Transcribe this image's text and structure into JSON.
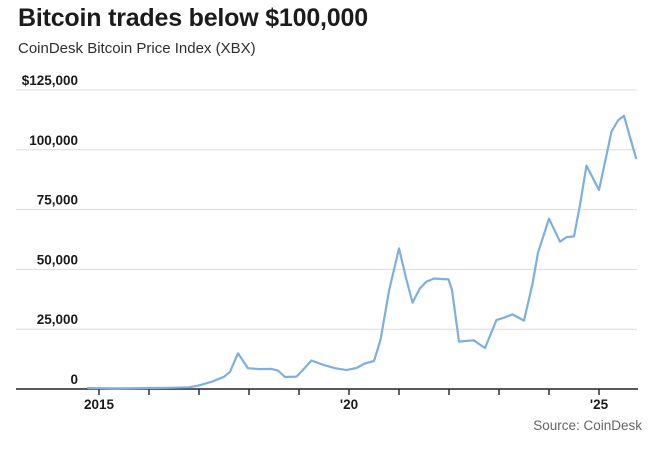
{
  "header": {
    "title": "Bitcoin trades below $100,000",
    "subtitle": "CoinDesk Bitcoin Price Index (XBX)"
  },
  "footer": {
    "source": "Source: CoinDesk"
  },
  "colors": {
    "line": "#7dafe1",
    "grid": "#dcdcdc",
    "axis": "#222222",
    "tick_label": "#1a1a1a",
    "title": "#1b1b1b",
    "source": "#666666",
    "background": "#ffffff"
  },
  "chart_data": {
    "type": "line",
    "title": "Bitcoin trades below $100,000",
    "subtitle": "CoinDesk Bitcoin Price Index (XBX)",
    "source": "Source: CoinDesk",
    "xlabel": "",
    "ylabel": "",
    "xlim": [
      2014.7,
      2025.8
    ],
    "ylim": [
      0,
      125000
    ],
    "grid": "horizontal",
    "legend": "none",
    "y_ticks": [
      {
        "value": 125000,
        "label": "$125,000"
      },
      {
        "value": 100000,
        "label": "100,000"
      },
      {
        "value": 75000,
        "label": "75,000"
      },
      {
        "value": 50000,
        "label": "50,000"
      },
      {
        "value": 25000,
        "label": "25,000"
      },
      {
        "value": 0,
        "label": "0"
      }
    ],
    "x_ticks": [
      {
        "value": 2015,
        "label": "2015"
      },
      {
        "value": 2016,
        "label": ""
      },
      {
        "value": 2017,
        "label": ""
      },
      {
        "value": 2018,
        "label": ""
      },
      {
        "value": 2019,
        "label": ""
      },
      {
        "value": 2020,
        "label": "'20"
      },
      {
        "value": 2021,
        "label": ""
      },
      {
        "value": 2022,
        "label": ""
      },
      {
        "value": 2023,
        "label": ""
      },
      {
        "value": 2024,
        "label": ""
      },
      {
        "value": 2025,
        "label": "'25"
      }
    ],
    "series": [
      {
        "name": "CoinDesk Bitcoin Price Index (XBX)",
        "color": "#7dafe1",
        "points": [
          [
            2014.78,
            400
          ],
          [
            2015.0,
            320
          ],
          [
            2015.3,
            270
          ],
          [
            2015.6,
            300
          ],
          [
            2016.0,
            430
          ],
          [
            2016.4,
            520
          ],
          [
            2016.8,
            700
          ],
          [
            2017.0,
            1500
          ],
          [
            2017.25,
            3000
          ],
          [
            2017.5,
            5100
          ],
          [
            2017.62,
            7200
          ],
          [
            2017.78,
            14900
          ],
          [
            2017.98,
            8700
          ],
          [
            2018.2,
            8300
          ],
          [
            2018.45,
            8400
          ],
          [
            2018.58,
            7700
          ],
          [
            2018.72,
            5000
          ],
          [
            2018.95,
            5200
          ],
          [
            2019.1,
            8500
          ],
          [
            2019.25,
            11900
          ],
          [
            2019.5,
            10000
          ],
          [
            2019.72,
            8700
          ],
          [
            2019.95,
            7900
          ],
          [
            2020.15,
            8800
          ],
          [
            2020.32,
            10700
          ],
          [
            2020.5,
            11700
          ],
          [
            2020.63,
            20500
          ],
          [
            2020.8,
            41000
          ],
          [
            2021.0,
            58800
          ],
          [
            2021.15,
            45600
          ],
          [
            2021.27,
            36100
          ],
          [
            2021.42,
            42100
          ],
          [
            2021.55,
            44900
          ],
          [
            2021.7,
            46200
          ],
          [
            2021.85,
            46000
          ],
          [
            2021.99,
            45800
          ],
          [
            2022.06,
            41400
          ],
          [
            2022.2,
            19800
          ],
          [
            2022.35,
            20100
          ],
          [
            2022.5,
            20300
          ],
          [
            2022.6,
            18800
          ],
          [
            2022.72,
            17100
          ],
          [
            2022.95,
            28900
          ],
          [
            2023.1,
            29800
          ],
          [
            2023.27,
            31200
          ],
          [
            2023.5,
            28600
          ],
          [
            2023.67,
            44000
          ],
          [
            2023.78,
            57000
          ],
          [
            2024.0,
            71200
          ],
          [
            2024.22,
            61600
          ],
          [
            2024.35,
            63500
          ],
          [
            2024.5,
            63800
          ],
          [
            2024.62,
            77000
          ],
          [
            2024.75,
            93400
          ],
          [
            2025.0,
            83200
          ],
          [
            2025.25,
            107600
          ],
          [
            2025.38,
            112300
          ],
          [
            2025.5,
            114200
          ],
          [
            2025.74,
            96500
          ]
        ]
      }
    ]
  }
}
